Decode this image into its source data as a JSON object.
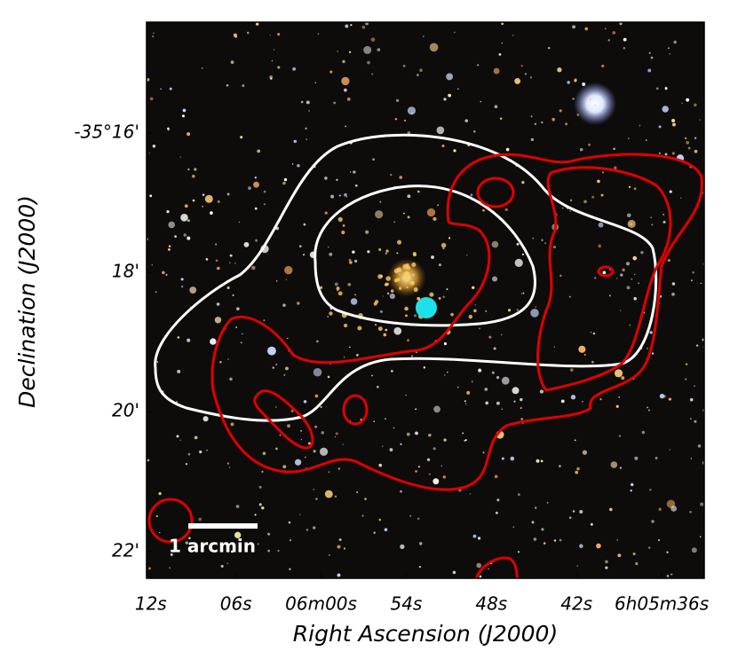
{
  "chart_data": {
    "type": "image",
    "xlabel": "Right Ascension (J2000)",
    "ylabel": "Declination (J2000)",
    "xlim": [
      21972.3,
      21933.0
    ],
    "xticks": [
      {
        "value": 21972,
        "label": "12s"
      },
      {
        "value": 21966,
        "label": "06s"
      },
      {
        "value": 21960,
        "label": "06m00s"
      },
      {
        "value": 21954,
        "label": "54s"
      },
      {
        "value": 21948,
        "label": "48s"
      },
      {
        "value": 21942,
        "label": "42s"
      },
      {
        "value": 21936,
        "label": "6h05m36s"
      }
    ],
    "ylim": [
      -35.3731,
      -35.2402
    ],
    "yticks": [
      {
        "value": -35.2667,
        "label": "-35°16'"
      },
      {
        "value": -35.3,
        "label": "18'"
      },
      {
        "value": -35.3333,
        "label": "20'"
      },
      {
        "value": -35.3667,
        "label": "22'"
      }
    ],
    "scale_bar_label": "1 arcmin"
  }
}
